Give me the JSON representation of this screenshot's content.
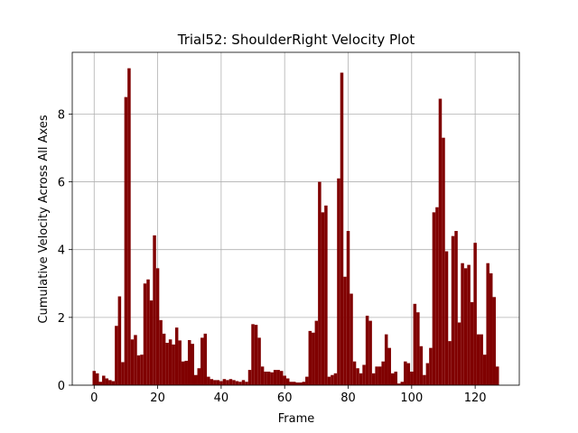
{
  "chart_data": {
    "type": "bar",
    "title": "Trial52: ShoulderRight Velocity Plot",
    "xlabel": "Frame",
    "ylabel": "Cumulative Velocity Across All Axes",
    "x": [
      0,
      1,
      2,
      3,
      4,
      5,
      6,
      7,
      8,
      9,
      10,
      11,
      12,
      13,
      14,
      15,
      16,
      17,
      18,
      19,
      20,
      21,
      22,
      23,
      24,
      25,
      26,
      27,
      28,
      29,
      30,
      31,
      32,
      33,
      34,
      35,
      36,
      37,
      38,
      39,
      40,
      41,
      42,
      43,
      44,
      45,
      46,
      47,
      48,
      49,
      50,
      51,
      52,
      53,
      54,
      55,
      56,
      57,
      58,
      59,
      60,
      61,
      62,
      63,
      64,
      65,
      66,
      67,
      68,
      69,
      70,
      71,
      72,
      73,
      74,
      75,
      76,
      77,
      78,
      79,
      80,
      81,
      82,
      83,
      84,
      85,
      86,
      87,
      88,
      89,
      90,
      91,
      92,
      93,
      94,
      95,
      96,
      97,
      98,
      99,
      100,
      101,
      102,
      103,
      104,
      105,
      106,
      107,
      108,
      109,
      110,
      111,
      112,
      113,
      114,
      115,
      116,
      117,
      118,
      119,
      120,
      121,
      122,
      123,
      124,
      125,
      126,
      127
    ],
    "values": [
      0.42,
      0.35,
      0.1,
      0.28,
      0.2,
      0.15,
      0.12,
      1.75,
      2.62,
      0.68,
      8.5,
      9.35,
      1.35,
      1.48,
      0.88,
      0.9,
      3.0,
      3.12,
      2.5,
      4.42,
      3.45,
      1.92,
      1.52,
      1.25,
      1.35,
      1.2,
      1.7,
      1.32,
      0.7,
      0.72,
      1.33,
      1.22,
      0.3,
      0.5,
      1.4,
      1.52,
      0.25,
      0.18,
      0.15,
      0.15,
      0.12,
      0.18,
      0.15,
      0.18,
      0.15,
      0.12,
      0.1,
      0.15,
      0.1,
      0.45,
      1.8,
      1.78,
      1.4,
      0.55,
      0.4,
      0.4,
      0.38,
      0.45,
      0.45,
      0.42,
      0.28,
      0.2,
      0.1,
      0.1,
      0.08,
      0.08,
      0.1,
      0.25,
      1.6,
      1.55,
      1.9,
      6.0,
      5.1,
      5.3,
      0.25,
      0.3,
      0.35,
      6.1,
      9.22,
      3.2,
      4.55,
      2.7,
      0.7,
      0.5,
      0.35,
      0.6,
      2.05,
      1.9,
      0.35,
      0.55,
      0.55,
      0.7,
      1.5,
      1.1,
      0.35,
      0.4,
      0.05,
      0.1,
      0.7,
      0.65,
      0.4,
      2.4,
      2.15,
      1.15,
      0.3,
      0.65,
      1.1,
      5.1,
      5.25,
      8.45,
      7.3,
      3.95,
      1.3,
      4.4,
      4.55,
      1.85,
      3.6,
      3.45,
      3.55,
      2.45,
      4.2,
      1.5,
      1.5,
      0.9,
      3.6,
      3.3,
      2.6,
      0.55
    ],
    "color": "#800000",
    "xlim": [
      -6.9,
      133.9
    ],
    "xticks": [
      0,
      20,
      40,
      60,
      80,
      100,
      120
    ],
    "ylim": [
      0,
      9.82
    ],
    "yticks": [
      0,
      2,
      4,
      6,
      8
    ],
    "grid": true
  }
}
